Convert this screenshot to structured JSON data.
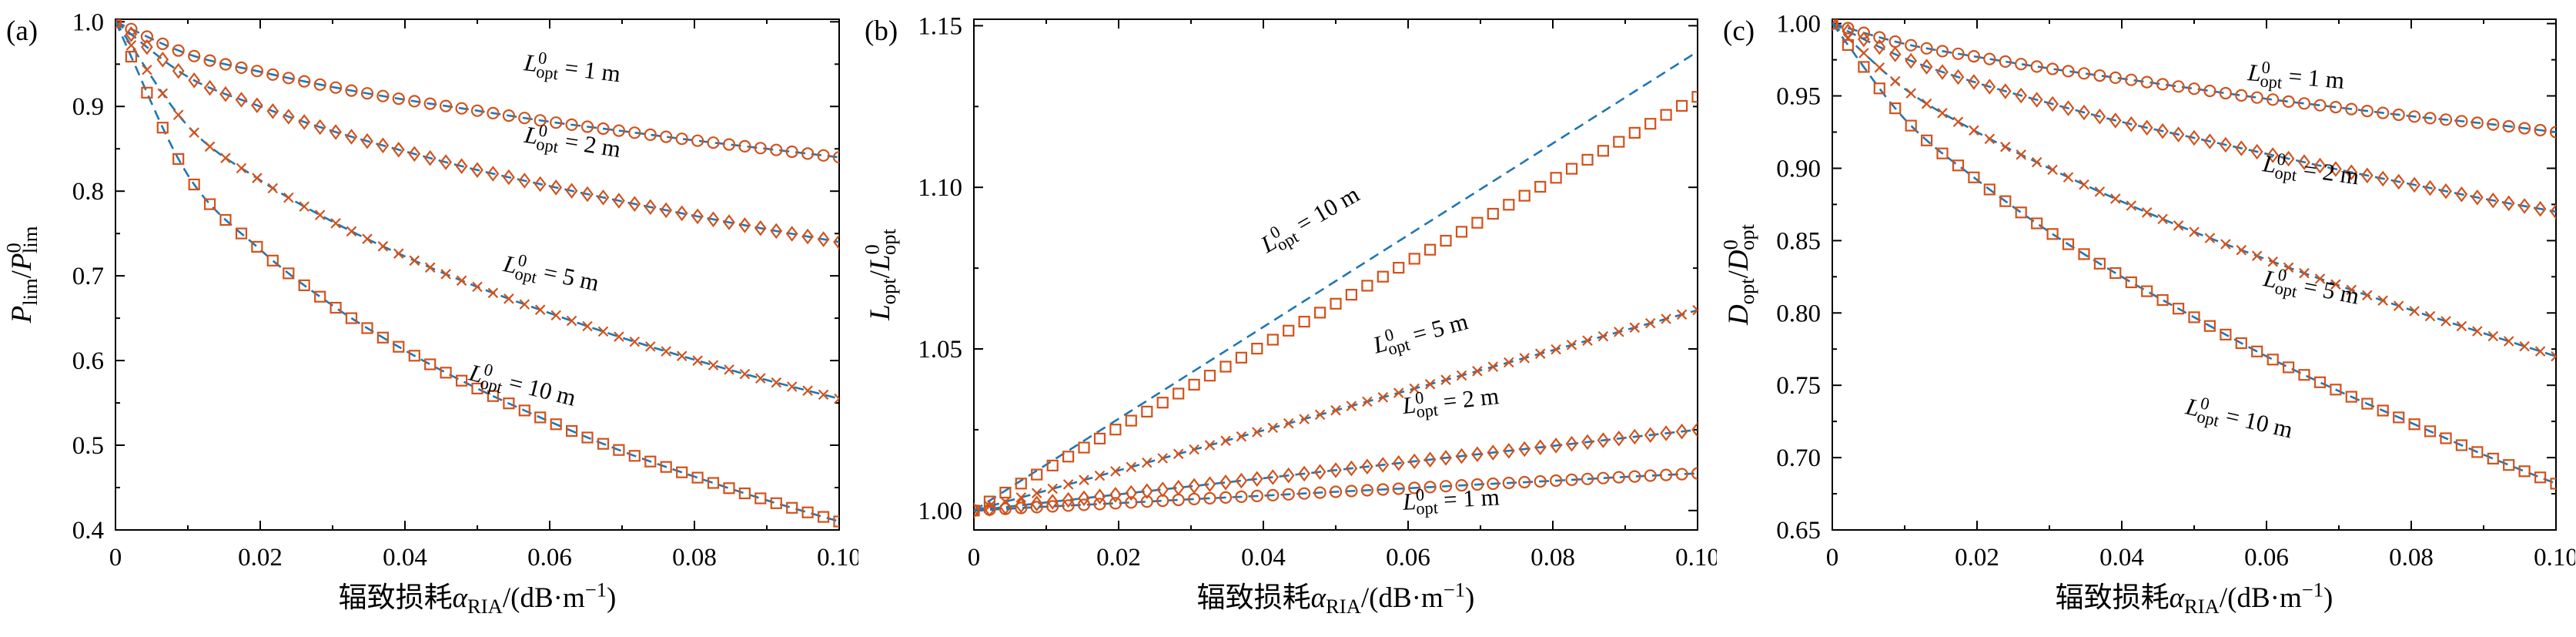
{
  "style": {
    "background": "#ffffff",
    "axis_color": "#000000",
    "marker_color": "#d2521c",
    "line_color": "#1f77b4",
    "text_color": "#000000"
  },
  "xlabel_parts": [
    {
      "t": "辐致损耗",
      "s": "n"
    },
    {
      "t": "α",
      "s": "i"
    },
    {
      "t": "RIA",
      "s": "sub"
    },
    {
      "t": "/(dB·m",
      "s": "n"
    },
    {
      "t": "−1",
      "s": "sup"
    },
    {
      "t": ")",
      "s": "n"
    }
  ],
  "chart_data": [
    {
      "id": "a",
      "panel_label": "(a)",
      "type": "line",
      "x_axis": {
        "label_text": "辐致损耗 αRIA/(dB·m⁻¹)",
        "range": [
          0,
          0.1
        ],
        "ticks": [
          0,
          0.02,
          0.04,
          0.06,
          0.08,
          0.1
        ],
        "tick_labels": [
          "0",
          "0.02",
          "0.04",
          "0.06",
          "0.08",
          "0.10"
        ],
        "minor_ticks": [
          0.01,
          0.03,
          0.05,
          0.07,
          0.09
        ]
      },
      "y_axis": {
        "label_text": "Pₗᵢₘ/P⁰ₗᵢₘ",
        "range": [
          0.4,
          1.003
        ],
        "ticks": [
          0.4,
          0.5,
          0.6,
          0.7,
          0.8,
          0.9,
          1.0
        ],
        "tick_labels": [
          "0.4",
          "0.5",
          "0.6",
          "0.7",
          "0.8",
          "0.9",
          "1.0"
        ],
        "minor_ticks": [
          0.45,
          0.55,
          0.65,
          0.75,
          0.85,
          0.95
        ]
      },
      "ylabel_parts": [
        {
          "t": "P",
          "s": "i"
        },
        {
          "t": "lim",
          "s": "sub"
        },
        {
          "t": "/",
          "s": "n"
        },
        {
          "t": "P",
          "s": "i"
        },
        {
          "s": "stack",
          "sup": "0",
          "sub": "lim"
        }
      ],
      "x": [
        0,
        0.01,
        0.02,
        0.03,
        0.04,
        0.05,
        0.06,
        0.07,
        0.08,
        0.09,
        0.1
      ],
      "series": [
        {
          "name": "L⁰ₒₚₜ = 1 m",
          "L0_m": 1,
          "marker": "circle",
          "y": [
            1.0,
            0.962,
            0.941,
            0.923,
            0.908,
            0.895,
            0.882,
            0.871,
            0.86,
            0.85,
            0.84
          ]
        },
        {
          "name": "L⁰ₒₚₜ = 2 m",
          "L0_m": 2,
          "marker": "diamond",
          "y": [
            1.0,
            0.935,
            0.9,
            0.871,
            0.847,
            0.825,
            0.806,
            0.788,
            0.771,
            0.755,
            0.74
          ]
        },
        {
          "name": "L⁰ₒₚₜ = 5 m",
          "L0_m": 5,
          "marker": "cross",
          "y": [
            1.0,
            0.877,
            0.813,
            0.764,
            0.723,
            0.687,
            0.656,
            0.627,
            0.601,
            0.577,
            0.555
          ]
        },
        {
          "name": "L⁰ₒₚₜ = 10 m",
          "L0_m": 10,
          "marker": "square",
          "y": [
            1.0,
            0.819,
            0.731,
            0.665,
            0.612,
            0.567,
            0.528,
            0.493,
            0.463,
            0.435,
            0.41
          ]
        }
      ],
      "annotations": [
        {
          "text": "L⁰ₒₚₜ = 1 m",
          "base": "L",
          "sup": "0",
          "sub": "opt",
          "rest": " = 1 m",
          "x": 0.063,
          "y": 0.936,
          "rot": 7
        },
        {
          "text": "L⁰ₒₚₜ = 2 m",
          "base": "L",
          "sup": "0",
          "sub": "opt",
          "rest": " = 2 m",
          "x": 0.063,
          "y": 0.849,
          "rot": 9
        },
        {
          "text": "L⁰ₒₚₜ = 5 m",
          "base": "L",
          "sup": "0",
          "sub": "opt",
          "rest": " = 5 m",
          "x": 0.06,
          "y": 0.694,
          "rot": 12
        },
        {
          "text": "L⁰ₒₚₜ = 10 m",
          "base": "L",
          "sup": "0",
          "sub": "opt",
          "rest": " = 10 m",
          "x": 0.056,
          "y": 0.562,
          "rot": 14
        }
      ]
    },
    {
      "id": "b",
      "panel_label": "(b)",
      "type": "line",
      "x_axis": {
        "label_text": "辐致损耗 αRIA/(dB·m⁻¹)",
        "range": [
          0,
          0.1
        ],
        "ticks": [
          0,
          0.02,
          0.04,
          0.06,
          0.08,
          0.1
        ],
        "tick_labels": [
          "0",
          "0.02",
          "0.04",
          "0.06",
          "0.08",
          "0.10"
        ],
        "minor_ticks": [
          0.01,
          0.03,
          0.05,
          0.07,
          0.09
        ]
      },
      "y_axis": {
        "label_text": "Lₒₚₜ/L⁰ₒₚₜ",
        "range": [
          0.994,
          1.152
        ],
        "ticks": [
          1.0,
          1.05,
          1.1,
          1.15
        ],
        "tick_labels": [
          "1.00",
          "1.05",
          "1.10",
          "1.15"
        ],
        "minor_ticks": [
          1.025,
          1.075,
          1.125
        ]
      },
      "ylabel_parts": [
        {
          "t": "L",
          "s": "i"
        },
        {
          "t": "opt",
          "s": "sub"
        },
        {
          "t": "/",
          "s": "n"
        },
        {
          "t": "L",
          "s": "i"
        },
        {
          "s": "stack",
          "sup": "0",
          "sub": "opt"
        }
      ],
      "x": [
        0,
        0.01,
        0.02,
        0.03,
        0.04,
        0.05,
        0.06,
        0.07,
        0.08,
        0.09,
        0.1
      ],
      "series": [
        {
          "name": "L⁰ₒₚₜ = 10 m",
          "L0_m": 10,
          "marker": "square",
          "y": [
            1.0,
            1.0128,
            1.0256,
            1.0384,
            1.0512,
            1.064,
            1.0768,
            1.0896,
            1.1024,
            1.1152,
            1.128
          ],
          "line_y": [
            1.0,
            1.0142,
            1.0284,
            1.0426,
            1.0568,
            1.071,
            1.0852,
            1.0994,
            1.1136,
            1.1278,
            1.142
          ]
        },
        {
          "name": "L⁰ₒₚₜ = 5 m",
          "L0_m": 5,
          "marker": "cross",
          "y": [
            1.0,
            1.0062,
            1.0124,
            1.0186,
            1.0248,
            1.031,
            1.0372,
            1.0434,
            1.0496,
            1.0558,
            1.062
          ]
        },
        {
          "name": "L⁰ₒₚₜ = 2 m",
          "L0_m": 2,
          "marker": "diamond",
          "y": [
            1.0,
            1.0025,
            1.005,
            1.0075,
            1.01,
            1.0125,
            1.015,
            1.0175,
            1.02,
            1.0225,
            1.025
          ]
        },
        {
          "name": "L⁰ₒₚₜ = 1 m",
          "L0_m": 1,
          "marker": "circle",
          "y": [
            1.0,
            1.0012,
            1.0023,
            1.0035,
            1.0046,
            1.0058,
            1.0069,
            1.0081,
            1.0092,
            1.0104,
            1.0115
          ]
        }
      ],
      "annotations": [
        {
          "text": "L⁰ₒₚₜ = 10 m",
          "base": "L",
          "sup": "0",
          "sub": "opt",
          "rest": " = 10 m",
          "x": 0.047,
          "y": 1.088,
          "rot": -30
        },
        {
          "text": "L⁰ₒₚₜ = 5 m",
          "base": "L",
          "sup": "0",
          "sub": "opt",
          "rest": " = 5 m",
          "x": 0.062,
          "y": 1.0525,
          "rot": -15
        },
        {
          "text": "L⁰ₒₚₜ = 2 m",
          "base": "L",
          "sup": "0",
          "sub": "opt",
          "rest": " = 2 m",
          "x": 0.066,
          "y": 1.0315,
          "rot": -6
        },
        {
          "text": "L⁰ₒₚₜ = 1 m",
          "base": "L",
          "sup": "0",
          "sub": "opt",
          "rest": " = 1 m",
          "x": 0.066,
          "y": 1.001,
          "rot": -3
        }
      ]
    },
    {
      "id": "c",
      "panel_label": "(c)",
      "type": "line",
      "x_axis": {
        "label_text": "辐致损耗 αRIA/(dB·m⁻¹)",
        "range": [
          0,
          0.1
        ],
        "ticks": [
          0,
          0.02,
          0.04,
          0.06,
          0.08,
          0.1
        ],
        "tick_labels": [
          "0",
          "0.02",
          "0.04",
          "0.06",
          "0.08",
          "0.10"
        ],
        "minor_ticks": [
          0.01,
          0.03,
          0.05,
          0.07,
          0.09
        ]
      },
      "y_axis": {
        "label_text": "Dₒₚₜ/D⁰ₒₚₜ",
        "range": [
          0.65,
          1.003
        ],
        "ticks": [
          0.65,
          0.7,
          0.75,
          0.8,
          0.85,
          0.9,
          0.95,
          1.0
        ],
        "tick_labels": [
          "0.65",
          "0.70",
          "0.75",
          "0.80",
          "0.85",
          "0.90",
          "0.95",
          "1.00"
        ],
        "minor_ticks": [
          0.675,
          0.725,
          0.775,
          0.825,
          0.875,
          0.925,
          0.975
        ]
      },
      "ylabel_parts": [
        {
          "t": "D",
          "s": "i"
        },
        {
          "t": "opt",
          "s": "sub"
        },
        {
          "t": "/",
          "s": "n"
        },
        {
          "t": "D",
          "s": "i"
        },
        {
          "s": "stack",
          "sup": "0",
          "sub": "opt"
        }
      ],
      "x": [
        0,
        0.01,
        0.02,
        0.03,
        0.04,
        0.05,
        0.06,
        0.07,
        0.08,
        0.09,
        0.1
      ],
      "series": [
        {
          "name": "L⁰ₒₚₜ = 1 m",
          "L0_m": 1,
          "marker": "circle",
          "y": [
            1.0,
            0.986,
            0.977,
            0.969,
            0.962,
            0.955,
            0.948,
            0.942,
            0.936,
            0.931,
            0.925
          ]
        },
        {
          "name": "L⁰ₒₚₜ = 2 m",
          "L0_m": 2,
          "marker": "diamond",
          "y": [
            1.0,
            0.976,
            0.959,
            0.945,
            0.932,
            0.921,
            0.91,
            0.899,
            0.889,
            0.879,
            0.87
          ]
        },
        {
          "name": "L⁰ₒₚₜ = 5 m",
          "L0_m": 5,
          "marker": "cross",
          "y": [
            1.0,
            0.955,
            0.925,
            0.9,
            0.877,
            0.856,
            0.837,
            0.819,
            0.802,
            0.786,
            0.77
          ]
        },
        {
          "name": "L⁰ₒₚₜ = 10 m",
          "L0_m": 10,
          "marker": "square",
          "y": [
            1.0,
            0.934,
            0.892,
            0.856,
            0.825,
            0.797,
            0.77,
            0.746,
            0.724,
            0.702,
            0.682
          ]
        }
      ],
      "annotations": [
        {
          "text": "L⁰ₒₚₜ = 1 m",
          "base": "L",
          "sup": "0",
          "sub": "opt",
          "rest": " = 1 m",
          "x": 0.064,
          "y": 0.958,
          "rot": 5
        },
        {
          "text": "L⁰ₒₚₜ = 2 m",
          "base": "L",
          "sup": "0",
          "sub": "opt",
          "rest": " = 2 m",
          "x": 0.066,
          "y": 0.8935,
          "rot": 8
        },
        {
          "text": "L⁰ₒₚₜ = 5 m",
          "base": "L",
          "sup": "0",
          "sub": "opt",
          "rest": " = 5 m",
          "x": 0.066,
          "y": 0.8125,
          "rot": 11
        },
        {
          "text": "L⁰ₒₚₜ = 10 m",
          "base": "L",
          "sup": "0",
          "sub": "opt",
          "rest": " = 10 m",
          "x": 0.056,
          "y": 0.722,
          "rot": 13
        }
      ]
    }
  ]
}
